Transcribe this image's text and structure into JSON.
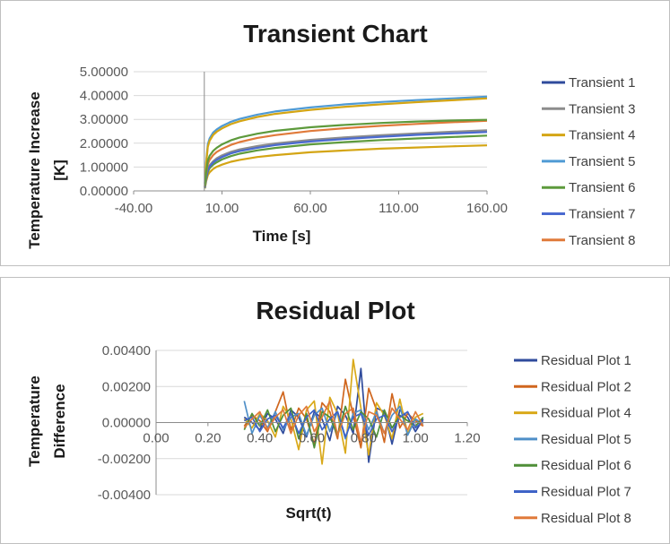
{
  "charts": [
    {
      "title": "Transient Chart",
      "xlabel": "Time [s]",
      "ylabel_line1": "Temperature Increase",
      "ylabel_line2": "[K]",
      "x_ticks": [
        "-40.00",
        "10.00",
        "60.00",
        "110.00",
        "160.00"
      ],
      "y_ticks": [
        "0.00000",
        "1.00000",
        "2.00000",
        "3.00000",
        "4.00000",
        "5.00000"
      ],
      "legend": [
        "Transient 1",
        "Transient 3",
        "Transient 4",
        "Transient 5",
        "Transient 6",
        "Transient 7",
        "Transient 8"
      ]
    },
    {
      "title": "Residual Plot",
      "xlabel": "Sqrt(t)",
      "ylabel_line1": "Temperature",
      "ylabel_line2": "Difference",
      "x_ticks": [
        "0.00",
        "0.20",
        "0.40",
        "0.60",
        "0.80",
        "1.00",
        "1.20"
      ],
      "y_ticks": [
        "-0.00400",
        "-0.00200",
        "0.00000",
        "0.00200",
        "0.00400"
      ],
      "legend": [
        "Residual Plot 1",
        "Residual Plot 2",
        "Residual Plot 4",
        "Residual Plot 5",
        "Residual Plot 6",
        "Residual Plot 7",
        "Residual Plot 8"
      ]
    }
  ],
  "chart_data": [
    {
      "type": "line",
      "title": "Transient Chart",
      "xlabel": "Time [s]",
      "ylabel": "Temperature Increase [K]",
      "xlim": [
        -40,
        160
      ],
      "ylim": [
        0,
        5
      ],
      "grid": true,
      "legend_position": "right",
      "x": [
        0.3,
        1,
        2,
        3,
        5,
        7,
        10,
        15,
        20,
        30,
        40,
        60,
        80,
        100,
        120,
        140,
        160
      ],
      "series": [
        {
          "name": "Transient 1",
          "color": "#2f4b9c",
          "values": [
            0.15,
            0.55,
            0.9,
            1.05,
            1.22,
            1.33,
            1.45,
            1.6,
            1.7,
            1.84,
            1.95,
            2.1,
            2.21,
            2.3,
            2.38,
            2.44,
            2.5
          ]
        },
        {
          "name": "Transient 3",
          "color": "#8c8c8c",
          "values": [
            0.15,
            0.55,
            0.93,
            1.08,
            1.25,
            1.37,
            1.49,
            1.64,
            1.74,
            1.88,
            1.99,
            2.14,
            2.25,
            2.34,
            2.41,
            2.48,
            2.54
          ]
        },
        {
          "name": "Transient 4",
          "color": "#d4a514",
          "values": [
            0.1,
            0.4,
            0.66,
            0.78,
            0.92,
            1.01,
            1.1,
            1.22,
            1.3,
            1.42,
            1.5,
            1.62,
            1.7,
            1.77,
            1.82,
            1.87,
            1.91
          ]
        },
        {
          "name": "Transient 5",
          "color": "#4f9ad4",
          "values": [
            0.3,
            1.2,
            1.95,
            2.2,
            2.45,
            2.58,
            2.72,
            2.9,
            3.02,
            3.2,
            3.33,
            3.5,
            3.63,
            3.73,
            3.81,
            3.88,
            3.95
          ]
        },
        {
          "name": "Transient 6",
          "color": "#5d9a3c",
          "values": [
            0.12,
            0.48,
            0.8,
            0.95,
            1.1,
            1.2,
            1.32,
            1.46,
            1.56,
            1.7,
            1.8,
            1.95,
            2.05,
            2.13,
            2.2,
            2.26,
            2.32
          ]
        },
        {
          "name": "Transient 7",
          "color": "#4a6ad0",
          "values": [
            0.14,
            0.52,
            0.87,
            1.02,
            1.19,
            1.3,
            1.42,
            1.57,
            1.67,
            1.81,
            1.92,
            2.07,
            2.18,
            2.27,
            2.35,
            2.41,
            2.47
          ]
        },
        {
          "name": "Transient 8",
          "color": "#e07a3a",
          "values": [
            0.18,
            0.7,
            1.12,
            1.3,
            1.5,
            1.63,
            1.76,
            1.93,
            2.05,
            2.22,
            2.34,
            2.51,
            2.63,
            2.73,
            2.81,
            2.88,
            2.94
          ]
        },
        {
          "name": "",
          "color": "#d4a514",
          "values": [
            0.28,
            1.12,
            1.85,
            2.1,
            2.35,
            2.48,
            2.62,
            2.8,
            2.92,
            3.1,
            3.23,
            3.4,
            3.53,
            3.63,
            3.72,
            3.8,
            3.88
          ]
        },
        {
          "name": "",
          "color": "#5d9a3c",
          "values": [
            0.2,
            0.78,
            1.27,
            1.47,
            1.68,
            1.81,
            1.95,
            2.12,
            2.24,
            2.4,
            2.52,
            2.67,
            2.77,
            2.85,
            2.91,
            2.95,
            2.98
          ]
        }
      ]
    },
    {
      "type": "line",
      "title": "Residual Plot",
      "xlabel": "Sqrt(t)",
      "ylabel": "Temperature Difference",
      "xlim": [
        0,
        1.2
      ],
      "ylim": [
        -0.004,
        0.004
      ],
      "grid": true,
      "legend_position": "right",
      "x": [
        0.34,
        0.37,
        0.4,
        0.43,
        0.46,
        0.49,
        0.52,
        0.55,
        0.58,
        0.61,
        0.64,
        0.67,
        0.7,
        0.73,
        0.76,
        0.79,
        0.82,
        0.85,
        0.88,
        0.91,
        0.94,
        0.97,
        1.0,
        1.03
      ],
      "series": [
        {
          "name": "Residual Plot 1",
          "color": "#2f4b9c",
          "values": [
            0.0003,
            0.0,
            -0.0004,
            0.0005,
            0.0002,
            -0.0006,
            0.0007,
            0.0003,
            -0.0008,
            0.0006,
            0.0002,
            -0.001,
            0.0009,
            0.0004,
            -0.0006,
            0.003,
            -0.0022,
            0.0008,
            0.0006,
            -0.0012,
            0.0007,
            0.0003,
            -0.0005,
            0.0002
          ]
        },
        {
          "name": "Residual Plot 2",
          "color": "#d0661e",
          "values": [
            -0.0002,
            0.0004,
            0.0001,
            -0.0005,
            0.0006,
            0.0017,
            -0.0004,
            0.0008,
            0.0002,
            -0.0012,
            0.0011,
            0.0006,
            -0.0009,
            0.0024,
            0.0004,
            -0.0014,
            0.0019,
            0.0007,
            -0.0011,
            0.0016,
            -0.0003,
            0.0005,
            0.0001,
            -0.0002
          ]
        },
        {
          "name": "Residual Plot 4",
          "color": "#d9a91a",
          "values": [
            0.0002,
            -0.0003,
            0.0005,
            0.0001,
            -0.0008,
            0.0009,
            0.0002,
            -0.0015,
            0.0007,
            0.0012,
            -0.0023,
            0.0014,
            0.0005,
            -0.0017,
            0.0035,
            0.0008,
            -0.0018,
            0.0011,
            0.0004,
            -0.0009,
            0.0013,
            -0.0006,
            0.0003,
            0.0005
          ]
        },
        {
          "name": "Residual Plot 5",
          "color": "#4f8fc8",
          "values": [
            0.0012,
            -0.0006,
            0.0004,
            -0.0003,
            0.0006,
            -0.0004,
            0.0003,
            0.0005,
            -0.0007,
            0.0004,
            0.0008,
            -0.0005,
            0.0006,
            -0.0009,
            0.0005,
            0.0007,
            -0.0004,
            0.0006,
            -0.0006,
            0.0004,
            0.0009,
            -0.0007,
            0.0002,
            -0.0001
          ]
        },
        {
          "name": "Residual Plot 6",
          "color": "#4f8f38",
          "values": [
            -0.0004,
            0.0005,
            -0.0002,
            0.0007,
            -0.0005,
            0.0004,
            0.0008,
            -0.0009,
            0.0005,
            -0.0014,
            0.0006,
            0.0003,
            -0.0007,
            0.0009,
            -0.0004,
            0.0006,
            0.0002,
            -0.0008,
            0.0007,
            -0.0003,
            0.0004,
            0.0001,
            -0.0002,
            0.0003
          ]
        },
        {
          "name": "Residual Plot 7",
          "color": "#3e63c7",
          "values": [
            0.0001,
            0.0003,
            -0.0005,
            0.0002,
            0.0004,
            -0.0003,
            0.0005,
            -0.0006,
            0.0003,
            0.0007,
            -0.0004,
            0.0002,
            0.0006,
            -0.0008,
            0.0003,
            0.0005,
            -0.0007,
            0.0002,
            0.0004,
            -0.0005,
            0.0003,
            0.0006,
            -0.0003,
            0.0001
          ]
        },
        {
          "name": "Residual Plot 8",
          "color": "#e07a3a",
          "values": [
            -0.0003,
            0.0002,
            0.0006,
            -0.0004,
            0.0003,
            0.0007,
            -0.0006,
            0.0004,
            0.0009,
            -0.0005,
            0.0003,
            0.0012,
            -0.0007,
            0.0005,
            0.0008,
            -0.0011,
            0.0006,
            0.0004,
            -0.0006,
            0.0008,
            0.0002,
            -0.0004,
            0.0006,
            -0.0002
          ]
        }
      ]
    }
  ]
}
